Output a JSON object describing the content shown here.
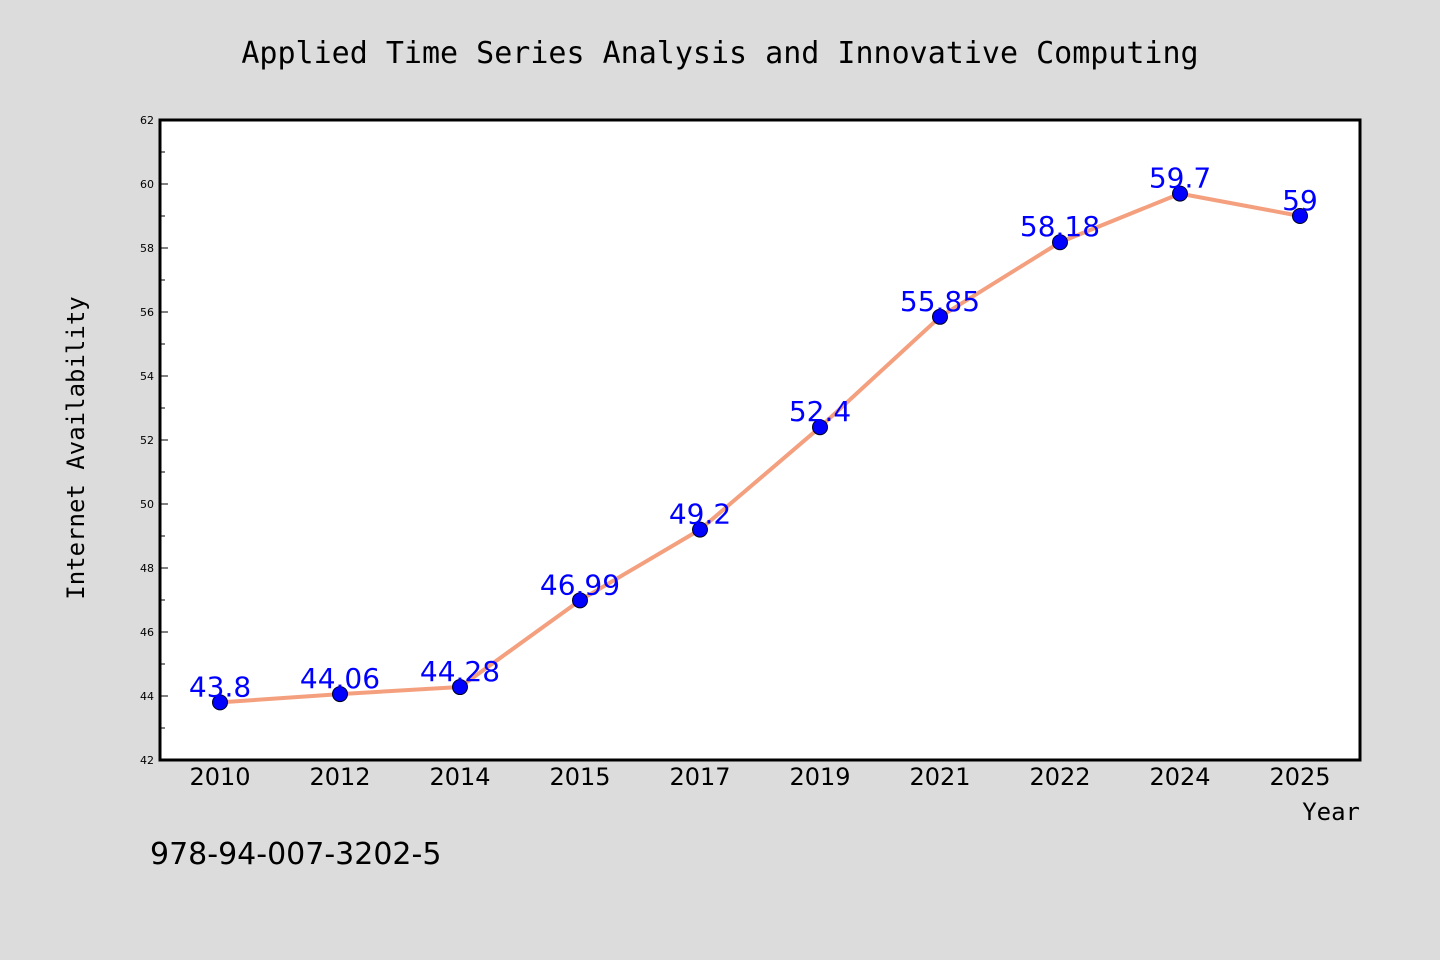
{
  "figure": {
    "caption": "978-94-007-3202-5"
  },
  "chart_data": {
    "type": "line",
    "title": "Applied Time Series Analysis and Innovative Computing",
    "xlabel": "Year",
    "ylabel": "Internet Availability",
    "categories": [
      "2010",
      "2012",
      "2014",
      "2015",
      "2017",
      "2019",
      "2021",
      "2022",
      "2024",
      "2025"
    ],
    "series": [
      {
        "values": [
          43.8,
          44.06,
          44.28,
          46.99,
          49.2,
          52.4,
          55.85,
          58.18,
          59.7,
          59
        ],
        "data_labels": [
          "43.8",
          "44.06",
          "44.28",
          "46.99",
          "49.2",
          "52.4",
          "55.85",
          "58.18",
          "59.7",
          "59"
        ]
      }
    ],
    "ylim": [
      42,
      62
    ],
    "yticks": [
      "42",
      "44",
      "46",
      "48",
      "50",
      "52",
      "54",
      "56",
      "58",
      "60",
      "62"
    ],
    "grid": false,
    "legend": "none",
    "colors": {
      "line": "#f4a07f",
      "marker": "#0000ff",
      "data_label": "#0000ff",
      "plot_background": "#ffffff",
      "figure_background": "#dcdcdc"
    }
  }
}
